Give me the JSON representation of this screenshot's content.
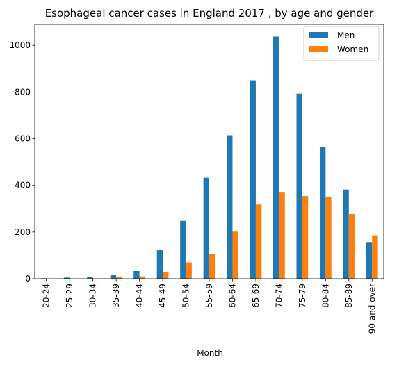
{
  "chart_data": {
    "type": "bar",
    "title": "Esophageal cancer cases in England 2017 , by age and gender",
    "xlabel": "Month",
    "ylabel": "",
    "categories": [
      "20-24",
      "25-29",
      "30-34",
      "35-39",
      "40-44",
      "45-49",
      "50-54",
      "55-59",
      "60-64",
      "65-69",
      "70-74",
      "75-79",
      "80-84",
      "85-89",
      "90 and over"
    ],
    "series": [
      {
        "name": "Men",
        "color": "#1f77b4",
        "values": [
          2,
          5,
          8,
          18,
          33,
          123,
          248,
          433,
          615,
          850,
          1038,
          793,
          566,
          382,
          157
        ]
      },
      {
        "name": "Women",
        "color": "#ff7f0e",
        "values": [
          0,
          0,
          1,
          6,
          10,
          30,
          70,
          107,
          202,
          318,
          372,
          354,
          351,
          277,
          186
        ]
      }
    ],
    "ylim": [
      0,
      1090
    ],
    "yticks": [
      0,
      200,
      400,
      600,
      800,
      1000
    ],
    "grid": false,
    "legend_position": "top-right"
  }
}
